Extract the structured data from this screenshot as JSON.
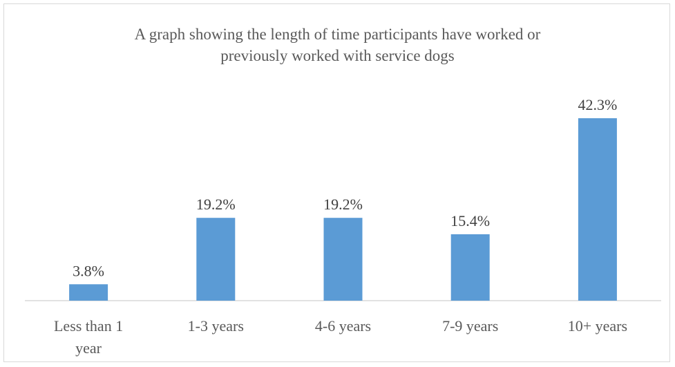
{
  "chart_data": {
    "type": "bar",
    "title": "A graph showing the length of time participants have worked or previously worked with service dogs",
    "title_lines": [
      "A graph showing the length of time participants have worked or",
      "previously worked with service dogs"
    ],
    "categories": [
      "Less than 1 year",
      "1-3 years",
      "4-6 years",
      "7-9 years",
      "10+ years"
    ],
    "category_lines": [
      [
        "Less than 1",
        "year"
      ],
      [
        "1-3 years"
      ],
      [
        "4-6 years"
      ],
      [
        "7-9 years"
      ],
      [
        "10+ years"
      ]
    ],
    "values": [
      3.8,
      19.2,
      19.2,
      15.4,
      42.3
    ],
    "data_labels": [
      "3.8%",
      "19.2%",
      "19.2%",
      "15.4%",
      "42.3%"
    ],
    "xlabel": "",
    "ylabel": "",
    "ylim": [
      0,
      45
    ],
    "grid": false,
    "legend": "none",
    "colors": {
      "bar": "#5b9bd5",
      "axis": "#d9d9d9",
      "text": "#595959"
    }
  }
}
